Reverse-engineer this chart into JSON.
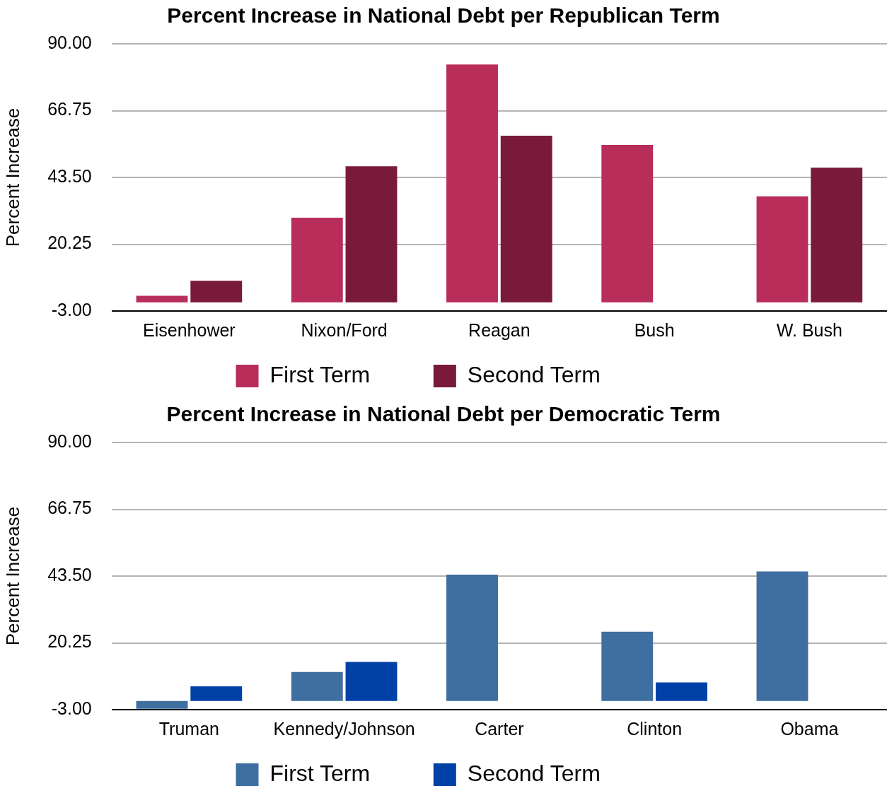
{
  "chart_data": [
    {
      "type": "bar",
      "title": "Percent Increase in National Debt per Republican Term",
      "ylabel": "Percent Increase",
      "categories": [
        "Eisenhower",
        "Nixon/Ford",
        "Reagan",
        "Bush",
        "W. Bush"
      ],
      "series": [
        {
          "name": "First Term",
          "color": "#b92d5a",
          "values": [
            2.3,
            29.5,
            82.8,
            54.8,
            36.9
          ]
        },
        {
          "name": "Second Term",
          "color": "#7a1a3a",
          "values": [
            7.5,
            47.4,
            58.0,
            null,
            46.9
          ]
        }
      ],
      "ylim": [
        -3,
        90
      ],
      "yticks": [
        {
          "value": -3,
          "label": "-3.00"
        },
        {
          "value": 20.25,
          "label": "20.25"
        },
        {
          "value": 43.5,
          "label": "43.50"
        },
        {
          "value": 66.75,
          "label": "66.75"
        },
        {
          "value": 90,
          "label": "90.00"
        }
      ],
      "grid": "y",
      "legend": "bottom"
    },
    {
      "type": "bar",
      "title": "Percent Increase in National Debt per Democratic Term",
      "ylabel": "Percent Increase",
      "categories": [
        "Truman",
        "Kennedy/Johnson",
        "Carter",
        "Clinton",
        "Obama"
      ],
      "series": [
        {
          "name": "First Term",
          "color": "#3e6fa0",
          "values": [
            -2.7,
            10.1,
            44.0,
            24.1,
            45.1
          ]
        },
        {
          "name": "Second Term",
          "color": "#0041a8",
          "values": [
            5.1,
            13.6,
            null,
            6.5,
            null
          ]
        }
      ],
      "ylim": [
        -3,
        90
      ],
      "yticks": [
        {
          "value": -3,
          "label": "-3.00"
        },
        {
          "value": 20.25,
          "label": "20.25"
        },
        {
          "value": 43.5,
          "label": "43.50"
        },
        {
          "value": 66.75,
          "label": "66.75"
        },
        {
          "value": 90,
          "label": "90.00"
        }
      ],
      "grid": "y",
      "legend": "bottom"
    }
  ]
}
